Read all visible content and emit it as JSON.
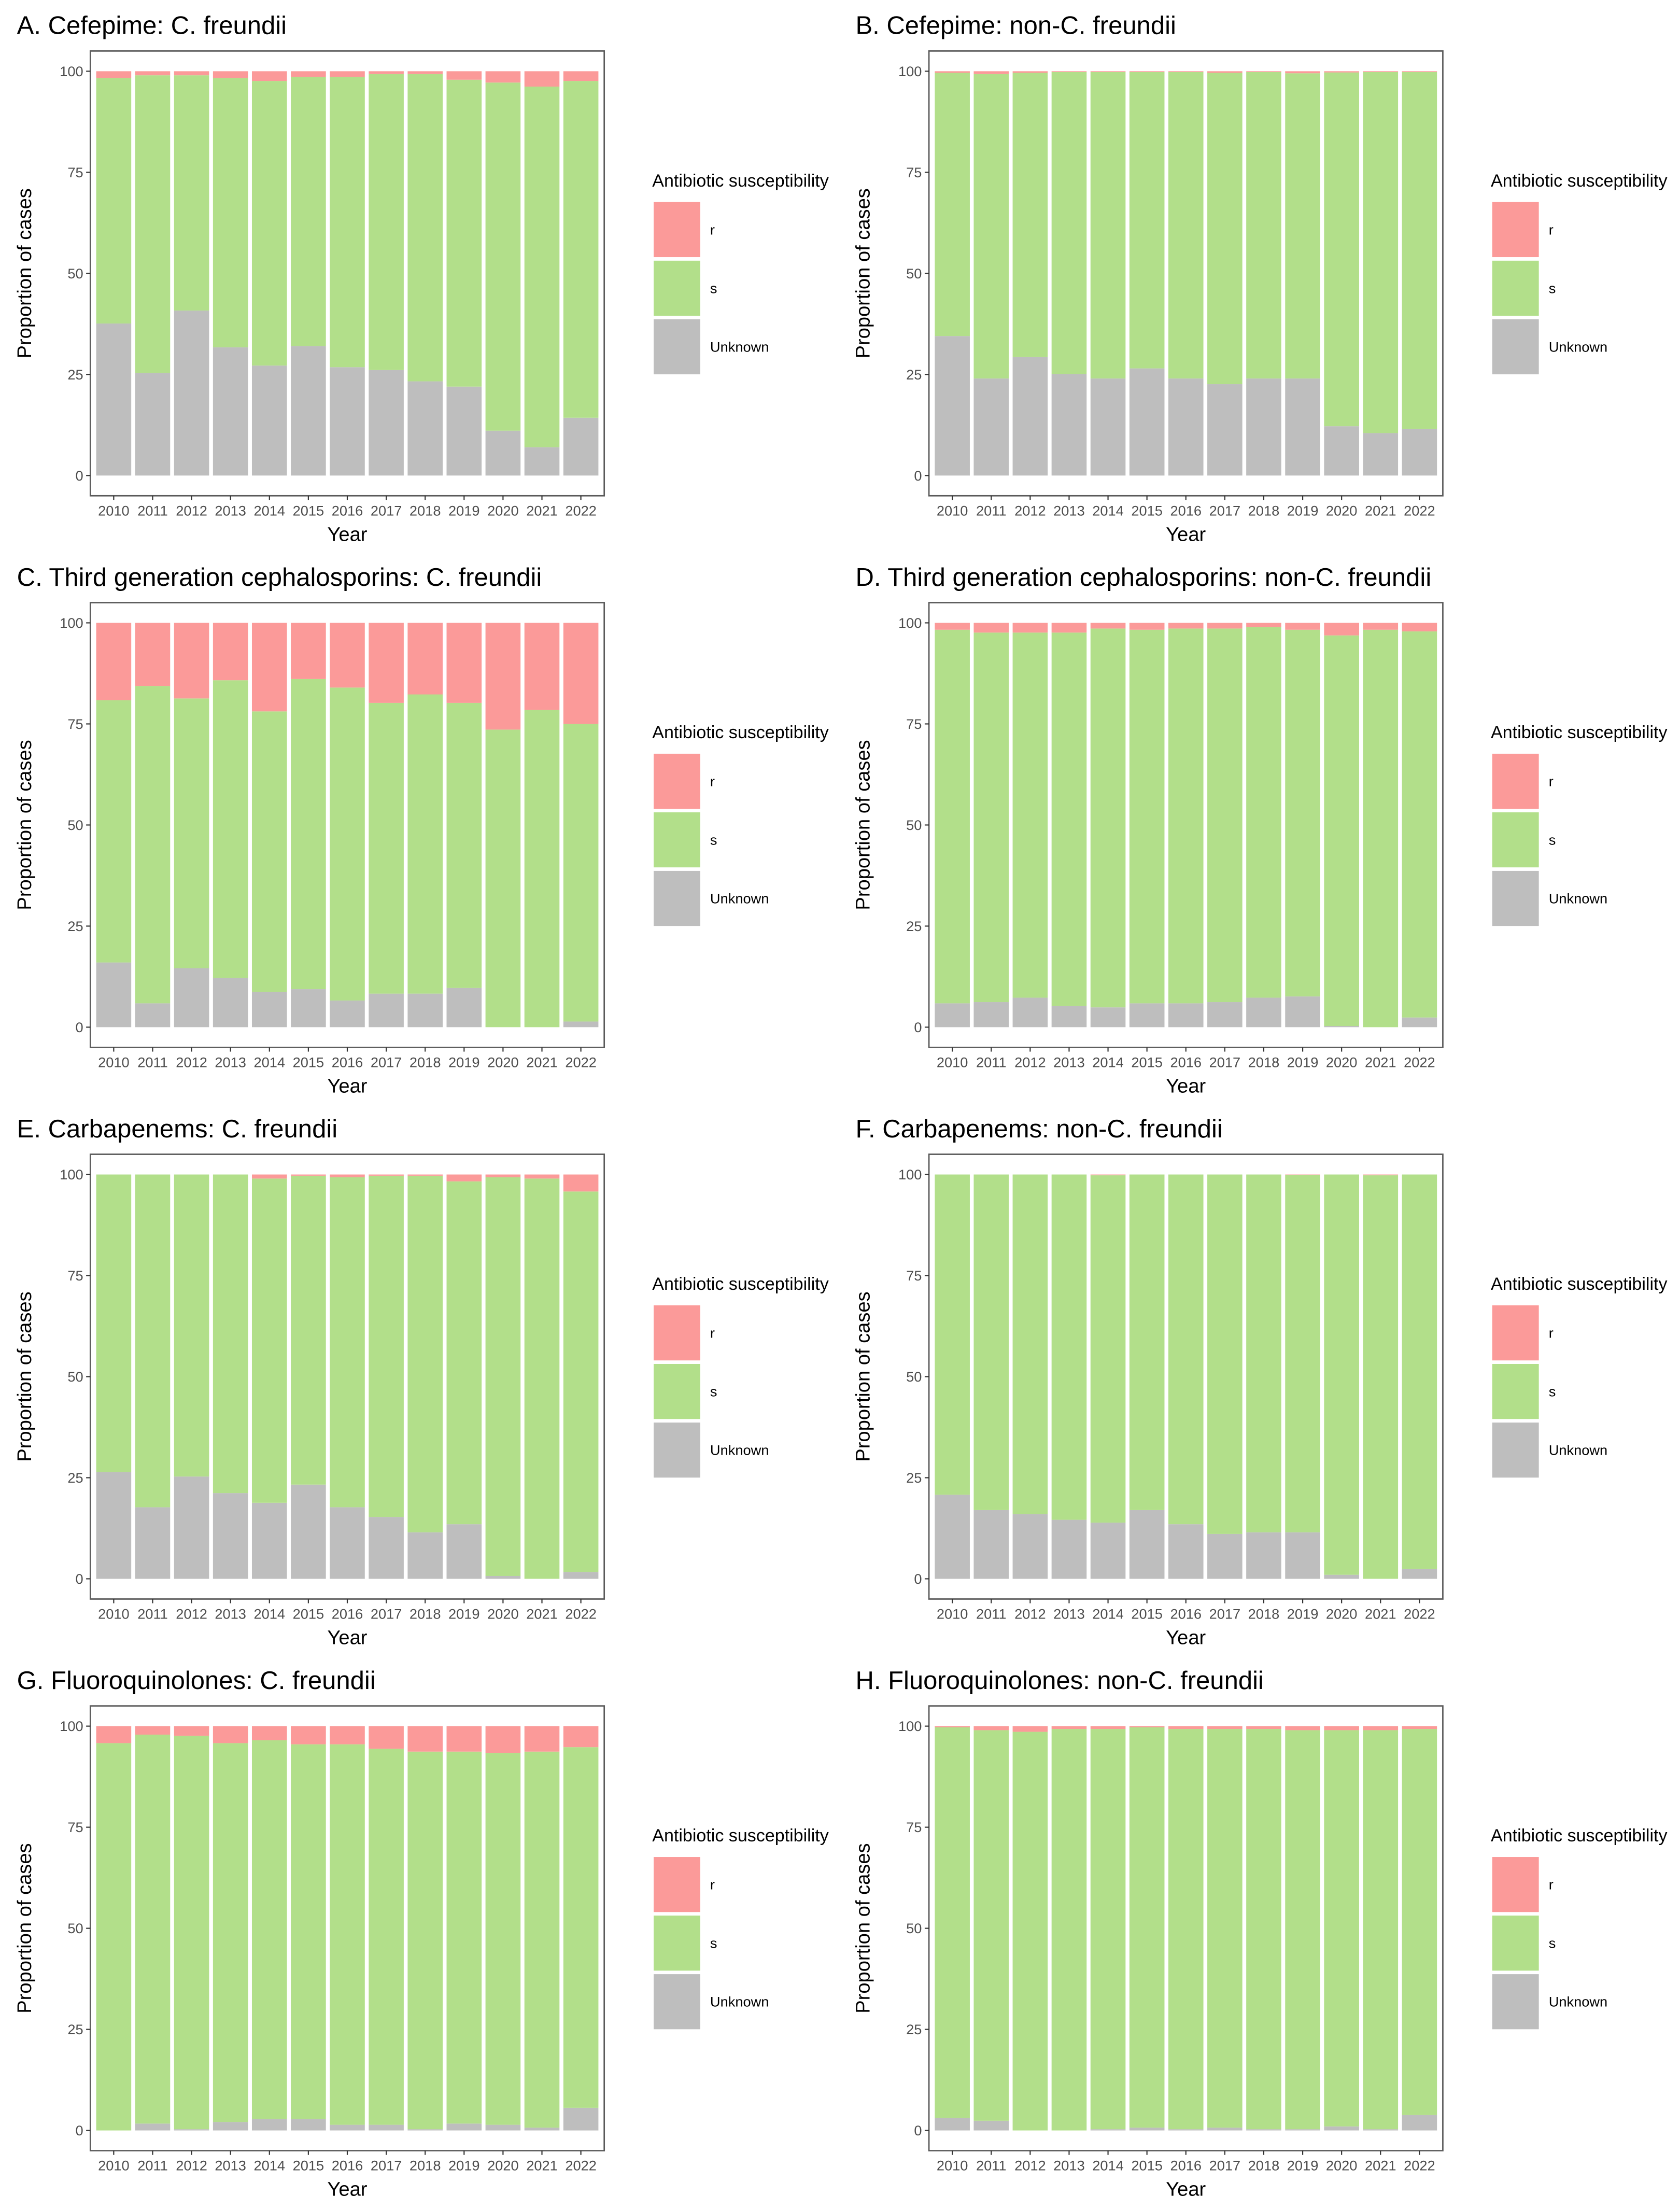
{
  "chart_data": [
    {
      "type": "bar",
      "stacked": true,
      "title": "A. Cefepime: C. freundii",
      "xlabel": "Year",
      "ylabel": "Proportion of cases",
      "ylim": [
        0,
        100
      ],
      "yticks": [
        0,
        25,
        50,
        75,
        100
      ],
      "categories": [
        "2010",
        "2011",
        "2012",
        "2013",
        "2014",
        "2015",
        "2016",
        "2017",
        "2018",
        "2019",
        "2020",
        "2021",
        "2022"
      ],
      "legend": {
        "title": "Antibiotic susceptibility",
        "position": "right"
      },
      "series": [
        {
          "name": "Unknown",
          "color": "#BEBEBE",
          "values": [
            37.6,
            25.4,
            40.8,
            31.7,
            27.2,
            32.0,
            26.8,
            26.1,
            23.3,
            22.0,
            11.1,
            7.0,
            14.3
          ]
        },
        {
          "name": "s",
          "color": "#B2DF8A",
          "values": [
            60.7,
            73.6,
            58.2,
            66.6,
            70.4,
            66.6,
            71.8,
            73.2,
            76.0,
            75.9,
            86.1,
            89.2,
            83.3
          ]
        },
        {
          "name": "r",
          "color": "#FB9A99",
          "values": [
            1.7,
            1.0,
            1.0,
            1.7,
            2.4,
            1.4,
            1.4,
            0.7,
            0.7,
            2.1,
            2.8,
            3.8,
            2.4
          ]
        }
      ]
    },
    {
      "type": "bar",
      "stacked": true,
      "title": "B. Cefepime: non-C. freundii",
      "xlabel": "Year",
      "ylabel": "Proportion of cases",
      "ylim": [
        0,
        100
      ],
      "yticks": [
        0,
        25,
        50,
        75,
        100
      ],
      "categories": [
        "2010",
        "2011",
        "2012",
        "2013",
        "2014",
        "2015",
        "2016",
        "2017",
        "2018",
        "2019",
        "2020",
        "2021",
        "2022"
      ],
      "legend": {
        "title": "Antibiotic susceptibility",
        "position": "right"
      },
      "series": [
        {
          "name": "Unknown",
          "color": "#BEBEBE",
          "values": [
            34.5,
            24.0,
            29.3,
            25.1,
            24.0,
            26.5,
            24.0,
            22.6,
            24.0,
            24.0,
            12.2,
            10.5,
            11.5
          ]
        },
        {
          "name": "s",
          "color": "#B2DF8A",
          "values": [
            65.1,
            75.3,
            70.3,
            74.7,
            75.8,
            73.3,
            75.8,
            77.0,
            75.8,
            75.5,
            87.5,
            89.3,
            88.3
          ]
        },
        {
          "name": "r",
          "color": "#FB9A99",
          "values": [
            0.4,
            0.7,
            0.4,
            0.2,
            0.2,
            0.2,
            0.2,
            0.4,
            0.2,
            0.5,
            0.3,
            0.2,
            0.2
          ]
        }
      ]
    },
    {
      "type": "bar",
      "stacked": true,
      "title": "C. Third generation cephalosporins: C. freundii",
      "xlabel": "Year",
      "ylabel": "Proportion of cases",
      "ylim": [
        0,
        100
      ],
      "yticks": [
        0,
        25,
        50,
        75,
        100
      ],
      "categories": [
        "2010",
        "2011",
        "2012",
        "2013",
        "2014",
        "2015",
        "2016",
        "2017",
        "2018",
        "2019",
        "2020",
        "2021",
        "2022"
      ],
      "legend": {
        "title": "Antibiotic susceptibility",
        "position": "right"
      },
      "series": [
        {
          "name": "Unknown",
          "color": "#BEBEBE",
          "values": [
            16.0,
            5.9,
            14.6,
            12.2,
            8.7,
            9.4,
            6.6,
            8.3,
            8.3,
            9.7,
            0.0,
            0.0,
            1.4
          ]
        },
        {
          "name": "s",
          "color": "#B2DF8A",
          "values": [
            64.9,
            78.5,
            66.7,
            73.6,
            69.4,
            76.7,
            77.4,
            71.9,
            74.0,
            70.5,
            73.6,
            78.5,
            73.6
          ]
        },
        {
          "name": "r",
          "color": "#FB9A99",
          "values": [
            19.1,
            15.6,
            18.7,
            14.2,
            21.9,
            13.9,
            16.0,
            19.8,
            17.7,
            19.8,
            26.4,
            21.5,
            25.0
          ]
        }
      ]
    },
    {
      "type": "bar",
      "stacked": true,
      "title": "D. Third generation cephalosporins: non-C. freundii",
      "xlabel": "Year",
      "ylabel": "Proportion of cases",
      "ylim": [
        0,
        100
      ],
      "yticks": [
        0,
        25,
        50,
        75,
        100
      ],
      "categories": [
        "2010",
        "2011",
        "2012",
        "2013",
        "2014",
        "2015",
        "2016",
        "2017",
        "2018",
        "2019",
        "2020",
        "2021",
        "2022"
      ],
      "legend": {
        "title": "Antibiotic susceptibility",
        "position": "right"
      },
      "series": [
        {
          "name": "Unknown",
          "color": "#BEBEBE",
          "values": [
            5.9,
            6.2,
            7.3,
            5.2,
            4.9,
            5.9,
            5.9,
            6.2,
            7.3,
            7.6,
            0.3,
            0.0,
            2.4
          ]
        },
        {
          "name": "s",
          "color": "#B2DF8A",
          "values": [
            92.4,
            91.4,
            90.3,
            92.4,
            93.7,
            92.4,
            92.7,
            92.4,
            91.7,
            90.7,
            96.6,
            98.3,
            95.5
          ]
        },
        {
          "name": "r",
          "color": "#FB9A99",
          "values": [
            1.7,
            2.4,
            2.4,
            2.4,
            1.4,
            1.7,
            1.4,
            1.4,
            1.0,
            1.7,
            3.1,
            1.7,
            2.1
          ]
        }
      ]
    },
    {
      "type": "bar",
      "stacked": true,
      "title": "E. Carbapenems: C. freundii",
      "xlabel": "Year",
      "ylabel": "Proportion of cases",
      "ylim": [
        0,
        100
      ],
      "yticks": [
        0,
        25,
        50,
        75,
        100
      ],
      "categories": [
        "2010",
        "2011",
        "2012",
        "2013",
        "2014",
        "2015",
        "2016",
        "2017",
        "2018",
        "2019",
        "2020",
        "2021",
        "2022"
      ],
      "legend": {
        "title": "Antibiotic susceptibility",
        "position": "right"
      },
      "series": [
        {
          "name": "Unknown",
          "color": "#BEBEBE",
          "values": [
            26.4,
            17.7,
            25.3,
            21.2,
            18.8,
            23.3,
            17.7,
            15.3,
            11.5,
            13.5,
            0.7,
            0.0,
            1.7
          ]
        },
        {
          "name": "s",
          "color": "#B2DF8A",
          "values": [
            73.6,
            82.3,
            74.7,
            78.8,
            80.2,
            76.4,
            81.6,
            84.4,
            88.2,
            84.8,
            98.6,
            99.0,
            94.1
          ]
        },
        {
          "name": "r",
          "color": "#FB9A99",
          "values": [
            0.0,
            0.0,
            0.0,
            0.0,
            1.0,
            0.3,
            0.7,
            0.3,
            0.3,
            1.7,
            0.7,
            1.0,
            4.2
          ]
        }
      ]
    },
    {
      "type": "bar",
      "stacked": true,
      "title": "F. Carbapenems: non-C. freundii",
      "xlabel": "Year",
      "ylabel": "Proportion of cases",
      "ylim": [
        0,
        100
      ],
      "yticks": [
        0,
        25,
        50,
        75,
        100
      ],
      "categories": [
        "2010",
        "2011",
        "2012",
        "2013",
        "2014",
        "2015",
        "2016",
        "2017",
        "2018",
        "2019",
        "2020",
        "2021",
        "2022"
      ],
      "legend": {
        "title": "Antibiotic susceptibility",
        "position": "right"
      },
      "series": [
        {
          "name": "Unknown",
          "color": "#BEBEBE",
          "values": [
            20.8,
            17.0,
            16.0,
            14.6,
            13.9,
            17.0,
            13.5,
            11.1,
            11.5,
            11.5,
            1.0,
            0.0,
            2.4
          ]
        },
        {
          "name": "s",
          "color": "#B2DF8A",
          "values": [
            79.2,
            83.0,
            84.0,
            85.4,
            85.9,
            83.0,
            86.5,
            88.9,
            88.5,
            88.4,
            99.0,
            99.8,
            97.6
          ]
        },
        {
          "name": "r",
          "color": "#FB9A99",
          "values": [
            0.0,
            0.0,
            0.0,
            0.0,
            0.2,
            0.0,
            0.0,
            0.0,
            0.0,
            0.1,
            0.0,
            0.2,
            0.0
          ]
        }
      ]
    },
    {
      "type": "bar",
      "stacked": true,
      "title": "G. Fluoroquinolones: C. freundii",
      "xlabel": "Year",
      "ylabel": "Proportion of cases",
      "ylim": [
        0,
        100
      ],
      "yticks": [
        0,
        25,
        50,
        75,
        100
      ],
      "categories": [
        "2010",
        "2011",
        "2012",
        "2013",
        "2014",
        "2015",
        "2016",
        "2017",
        "2018",
        "2019",
        "2020",
        "2021",
        "2022"
      ],
      "legend": {
        "title": "Antibiotic susceptibility",
        "position": "right"
      },
      "series": [
        {
          "name": "Unknown",
          "color": "#BEBEBE",
          "values": [
            0.0,
            1.7,
            0.3,
            2.1,
            2.8,
            2.8,
            1.4,
            1.4,
            0.3,
            1.7,
            1.4,
            0.7,
            5.6
          ]
        },
        {
          "name": "s",
          "color": "#B2DF8A",
          "values": [
            95.8,
            96.2,
            97.3,
            93.7,
            93.7,
            92.7,
            94.1,
            93.0,
            93.4,
            92.0,
            92.0,
            93.0,
            89.2
          ]
        },
        {
          "name": "r",
          "color": "#FB9A99",
          "values": [
            4.2,
            2.1,
            2.4,
            4.2,
            3.5,
            4.5,
            4.5,
            5.6,
            6.3,
            6.3,
            6.6,
            6.3,
            5.2
          ]
        }
      ]
    },
    {
      "type": "bar",
      "stacked": true,
      "title": "H. Fluoroquinolones: non-C. freundii",
      "xlabel": "Year",
      "ylabel": "Proportion of cases",
      "ylim": [
        0,
        100
      ],
      "yticks": [
        0,
        25,
        50,
        75,
        100
      ],
      "categories": [
        "2010",
        "2011",
        "2012",
        "2013",
        "2014",
        "2015",
        "2016",
        "2017",
        "2018",
        "2019",
        "2020",
        "2021",
        "2022"
      ],
      "legend": {
        "title": "Antibiotic susceptibility",
        "position": "right"
      },
      "series": [
        {
          "name": "Unknown",
          "color": "#BEBEBE",
          "values": [
            3.1,
            2.4,
            0.0,
            0.0,
            0.3,
            0.7,
            0.3,
            0.7,
            0.3,
            0.3,
            1.0,
            0.3,
            3.8
          ]
        },
        {
          "name": "s",
          "color": "#B2DF8A",
          "values": [
            96.6,
            96.6,
            98.6,
            99.3,
            99.0,
            99.0,
            99.0,
            98.6,
            99.0,
            98.7,
            98.0,
            98.7,
            95.5
          ]
        },
        {
          "name": "r",
          "color": "#FB9A99",
          "values": [
            0.3,
            1.0,
            1.4,
            0.7,
            0.7,
            0.3,
            0.7,
            0.7,
            0.7,
            1.0,
            1.0,
            1.0,
            0.7
          ]
        }
      ]
    }
  ]
}
